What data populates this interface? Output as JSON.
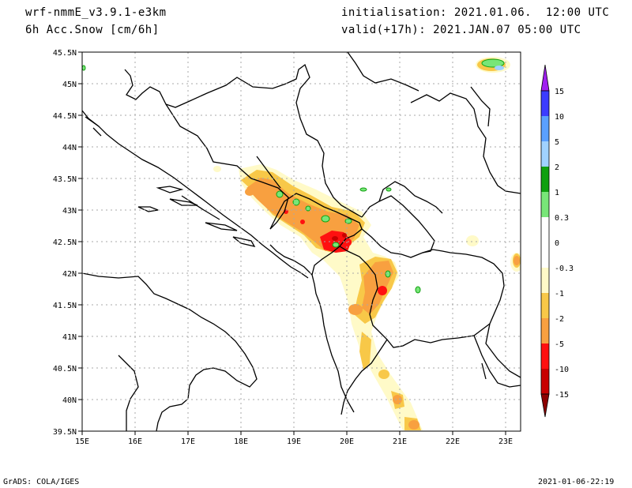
{
  "header": {
    "model": "wrf-nmmE_v3.9.1-e3km",
    "field": "6h Acc.Snow [cm/6h]",
    "initialisation": "initialisation: 2021.01.06.  12:00 UTC",
    "valid": "valid(+17h): 2021.JAN.07 05:00 UTC"
  },
  "footer": {
    "left": "GrADS: COLA/IGES",
    "right": "2021-01-06-22:19"
  },
  "map": {
    "lat_labels": [
      "45.5N",
      "45N",
      "44.5N",
      "44N",
      "43.5N",
      "43N",
      "42.5N",
      "42N",
      "41.5N",
      "41N",
      "40.5N",
      "40N",
      "39.5N"
    ],
    "lon_labels": [
      "15E",
      "16E",
      "17E",
      "18E",
      "19E",
      "20E",
      "21E",
      "22E",
      "23E"
    ],
    "lat_range": [
      39.5,
      45.5
    ],
    "lon_range": [
      15,
      23.3
    ],
    "grid": "dotted"
  },
  "colorbar": {
    "levels": [
      "15",
      "10",
      "5",
      "2",
      "1",
      "0.3",
      "0",
      "-0.3",
      "-1",
      "-2",
      "-5",
      "-10",
      "-15"
    ],
    "colors": [
      "#a020f0",
      "#3c3cff",
      "#5aa0ff",
      "#a0d2ff",
      "#10a010",
      "#78e678",
      "#ffffff",
      "#fffac8",
      "#f8c848",
      "#f8a040",
      "#ff1010",
      "#c80000",
      "#8c0000"
    ]
  }
}
